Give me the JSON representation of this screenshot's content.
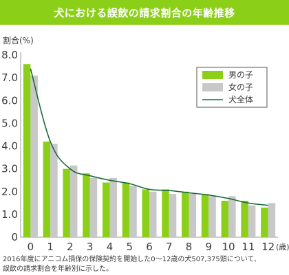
{
  "chart_data": {
    "type": "bar",
    "title": "犬における誤飲の請求割合の年齢推移",
    "ylabel": "割合(%)",
    "x_unit": "(歳)",
    "categories": [
      "0",
      "1",
      "2",
      "3",
      "4",
      "5",
      "6",
      "7",
      "8",
      "9",
      "10",
      "11",
      "12"
    ],
    "ylim": [
      0,
      8.0
    ],
    "yticks": [
      "0",
      "1.0",
      "2.0",
      "3.0",
      "4.0",
      "5.0",
      "6.0",
      "7.0",
      "8.0"
    ],
    "grid": false,
    "legend_position": "top-right",
    "series": [
      {
        "name": "男の子",
        "kind": "bar",
        "color": "#8ccf18",
        "values": [
          7.6,
          4.2,
          3.0,
          2.8,
          2.4,
          2.4,
          2.1,
          2.1,
          2.0,
          1.9,
          1.6,
          1.6,
          1.3
        ]
      },
      {
        "name": "女の子",
        "kind": "bar",
        "color": "#c8c8c8",
        "values": [
          7.1,
          4.1,
          3.15,
          2.6,
          2.6,
          2.25,
          2.0,
          1.9,
          1.9,
          1.8,
          1.8,
          1.4,
          1.5
        ]
      },
      {
        "name": "犬全体",
        "kind": "line",
        "color": "#1a6a3a",
        "values": [
          7.4,
          4.2,
          3.0,
          2.7,
          2.5,
          2.35,
          2.1,
          2.05,
          1.95,
          1.85,
          1.7,
          1.5,
          1.4
        ]
      }
    ],
    "note_lines": [
      "2016年度にアニコム損保の保険契約を開始した0〜12歳の犬507,375頭について、",
      "誤飲の請求割合を年齢別に示した。"
    ]
  }
}
